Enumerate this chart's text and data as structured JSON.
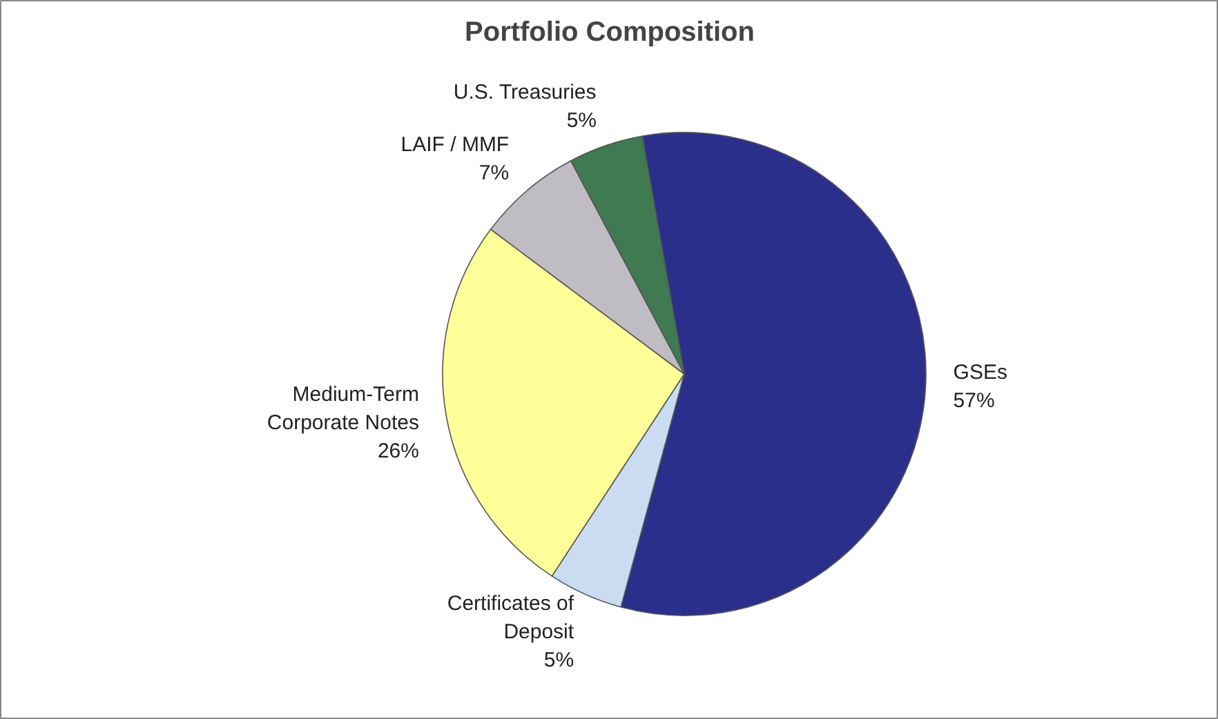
{
  "chart_data": {
    "type": "pie",
    "title": "Portfolio Composition",
    "categories": [
      "GSEs",
      "Certificates of Deposit",
      "Medium-Term Corporate Notes",
      "LAIF / MMF",
      "U.S. Treasuries"
    ],
    "values": [
      57,
      5,
      26,
      7,
      5
    ],
    "value_labels": [
      "57%",
      "5%",
      "26%",
      "7%",
      "5%"
    ],
    "colors": [
      "#2b2f8c",
      "#c9dcf2",
      "#ffff99",
      "#c0bcc4",
      "#3f7a50"
    ]
  }
}
